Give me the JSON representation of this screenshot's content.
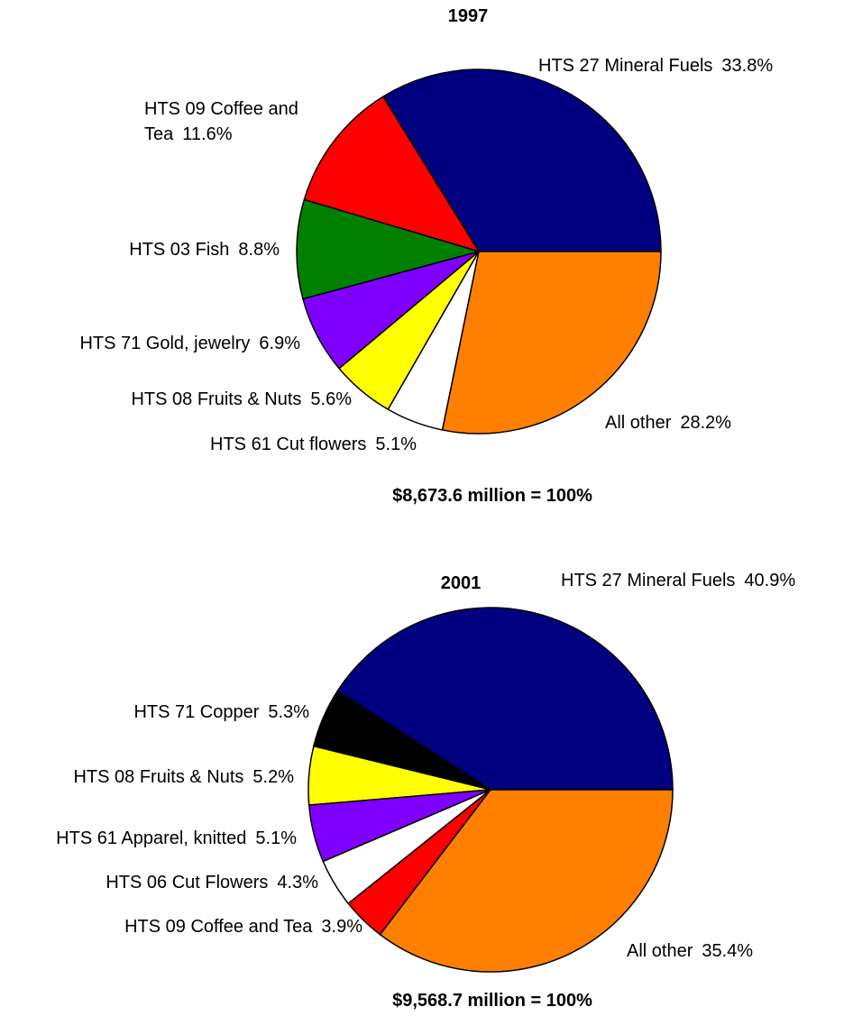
{
  "chart_data": [
    {
      "type": "pie",
      "title": "1997",
      "categories": [
        "HTS 27 Mineral Fuels",
        "HTS 09 Coffee and Tea",
        "HTS 03 Fish",
        "HTS 71 Gold, jewelry",
        "HTS 08 Fruits & Nuts",
        "HTS 61 Cut flowers",
        "All other"
      ],
      "values": [
        33.8,
        11.6,
        8.8,
        6.9,
        5.6,
        5.1,
        28.2
      ],
      "value_labels": [
        "33.8%",
        "11.6%",
        "8.8%",
        "6.9%",
        "5.6%",
        "5.1%",
        "28.2%"
      ],
      "colors": [
        "#000080",
        "#ff0000",
        "#008000",
        "#8000ff",
        "#ffff00",
        "#ffffff",
        "#ff8000"
      ],
      "total_label": "$8,673.6 million = 100%"
    },
    {
      "type": "pie",
      "title": "2001",
      "categories": [
        "HTS 27 Mineral Fuels",
        "HTS 71 Copper",
        "HTS 08 Fruits & Nuts",
        "HTS 61 Apparel, knitted",
        "HTS 06 Cut Flowers",
        "HTS 09 Coffee and Tea",
        "All other"
      ],
      "values": [
        40.9,
        5.3,
        5.2,
        5.1,
        4.3,
        3.9,
        35.4
      ],
      "value_labels": [
        "40.9%",
        "5.3%",
        "5.2%",
        "5.1%",
        "4.3%",
        "3.9%",
        "35.4%"
      ],
      "colors": [
        "#000080",
        "#000000",
        "#ffff00",
        "#8000ff",
        "#ffffff",
        "#ff0000",
        "#ff8000"
      ],
      "total_label": "$9,568.7 million = 100%"
    }
  ]
}
